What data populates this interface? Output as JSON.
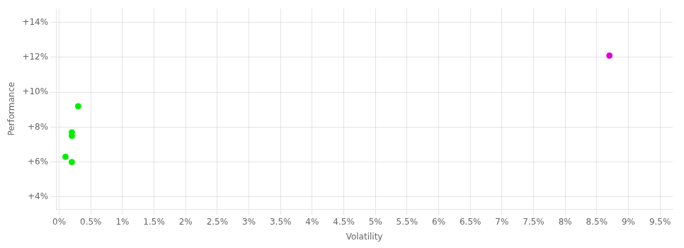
{
  "chart_data": {
    "type": "scatter",
    "xlabel": "Volatility",
    "ylabel": "Performance",
    "series": [
      {
        "color": "#00ee00",
        "x": [
          0.003,
          0.002,
          0.002,
          0.001,
          0.002
        ],
        "values": [
          0.092,
          0.077,
          0.075,
          0.063,
          0.06
        ]
      },
      {
        "color": "#dd00dd",
        "x": [
          0.087
        ],
        "values": [
          0.121
        ]
      }
    ],
    "xlim": [
      -0.0005,
      0.097
    ],
    "ylim": [
      0.033,
      0.148
    ],
    "xticks": [
      {
        "value": 0,
        "label": "0%"
      },
      {
        "value": 0.005,
        "label": "0.5%"
      },
      {
        "value": 0.01,
        "label": "1%"
      },
      {
        "value": 0.015,
        "label": "1.5%"
      },
      {
        "value": 0.02,
        "label": "2%"
      },
      {
        "value": 0.025,
        "label": "2.5%"
      },
      {
        "value": 0.03,
        "label": "3%"
      },
      {
        "value": 0.035,
        "label": "3.5%"
      },
      {
        "value": 0.04,
        "label": "4%"
      },
      {
        "value": 0.045,
        "label": "4.5%"
      },
      {
        "value": 0.05,
        "label": "5%"
      },
      {
        "value": 0.055,
        "label": "5.5%"
      },
      {
        "value": 0.06,
        "label": "6%"
      },
      {
        "value": 0.065,
        "label": "6.5%"
      },
      {
        "value": 0.07,
        "label": "7%"
      },
      {
        "value": 0.075,
        "label": "7.5%"
      },
      {
        "value": 0.08,
        "label": "8%"
      },
      {
        "value": 0.085,
        "label": "8.5%"
      },
      {
        "value": 0.09,
        "label": "9%"
      },
      {
        "value": 0.095,
        "label": "9.5%"
      }
    ],
    "yticks": [
      {
        "value": 0.04,
        "label": "+4%"
      },
      {
        "value": 0.06,
        "label": "+6%"
      },
      {
        "value": 0.08,
        "label": "+8%"
      },
      {
        "value": 0.1,
        "label": "+10%"
      },
      {
        "value": 0.12,
        "label": "+12%"
      },
      {
        "value": 0.14,
        "label": "+14%"
      }
    ],
    "grid": true
  }
}
